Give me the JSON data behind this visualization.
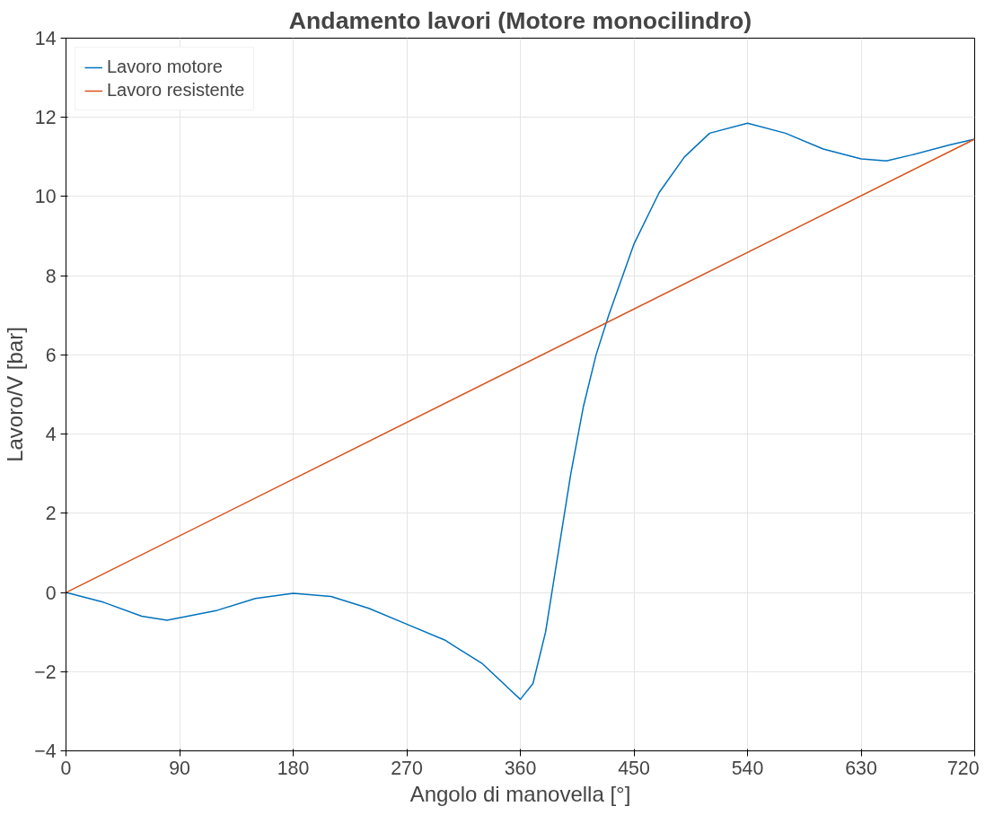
{
  "chart_data": {
    "type": "line",
    "title": "Andamento lavori (Motore monocilindro)",
    "xlabel": "Angolo di manovella [°]",
    "ylabel": "Lavoro/V [bar]",
    "xlim": [
      0,
      720
    ],
    "ylim": [
      -4,
      14
    ],
    "xticks": [
      0,
      90,
      180,
      270,
      360,
      450,
      540,
      630,
      720
    ],
    "yticks": [
      -4,
      -2,
      0,
      2,
      4,
      6,
      8,
      10,
      12,
      14
    ],
    "grid": true,
    "legend": "top left",
    "series": [
      {
        "name": "Lavoro motore",
        "color": "#0072bd",
        "x": [
          0,
          30,
          60,
          80,
          120,
          150,
          180,
          210,
          240,
          270,
          300,
          330,
          350,
          360,
          370,
          380,
          390,
          400,
          410,
          420,
          430,
          450,
          470,
          490,
          510,
          540,
          570,
          600,
          630,
          650,
          670,
          700,
          720
        ],
        "values": [
          0,
          -0.25,
          -0.6,
          -0.7,
          -0.45,
          -0.15,
          -0.02,
          -0.1,
          -0.4,
          -0.8,
          -1.2,
          -1.8,
          -2.4,
          -2.7,
          -2.3,
          -1.0,
          1.0,
          3.0,
          4.7,
          6.0,
          7.0,
          8.8,
          10.1,
          11.0,
          11.6,
          11.85,
          11.6,
          11.2,
          10.95,
          10.9,
          11.05,
          11.3,
          11.45
        ]
      },
      {
        "name": "Lavoro resistente",
        "color": "#d95319",
        "x": [
          0,
          720
        ],
        "values": [
          0,
          11.45
        ]
      }
    ]
  }
}
